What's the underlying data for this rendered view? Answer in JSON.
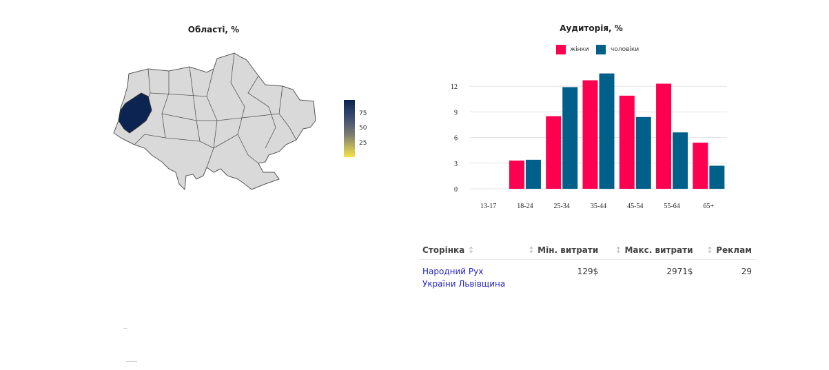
{
  "map": {
    "title": "Області, %",
    "highlighted_region": "Львівська",
    "colorbar_ticks": [
      "75",
      "50",
      "25"
    ],
    "colors": {
      "high": "#0c2452",
      "low": "#f5e24a",
      "empty": "#d9d9d9"
    }
  },
  "chart_data": {
    "type": "bar",
    "title": "Аудиторія, %",
    "categories": [
      "13-17",
      "18-24",
      "25-34",
      "35-44",
      "45-54",
      "55-64",
      "65+"
    ],
    "series": [
      {
        "name": "жінки",
        "color": "#ff0050",
        "values": [
          0,
          3.3,
          8.5,
          12.7,
          10.9,
          12.3,
          5.4
        ]
      },
      {
        "name": "чоловіки",
        "color": "#006089",
        "values": [
          0,
          3.4,
          11.9,
          13.5,
          8.4,
          6.6,
          2.7
        ]
      }
    ],
    "yticks": [
      0,
      3,
      6,
      9,
      12
    ],
    "ylim": [
      0,
      14
    ],
    "grid": true,
    "legend": "top"
  },
  "table": {
    "headers": [
      "Сторінка",
      "Мін. витрати",
      "Макс. витрати",
      "Реклам"
    ],
    "rows": [
      {
        "page": "Народний Рух України Львівщина",
        "min": "129$",
        "max": "2971$",
        "ads": "29"
      }
    ]
  }
}
